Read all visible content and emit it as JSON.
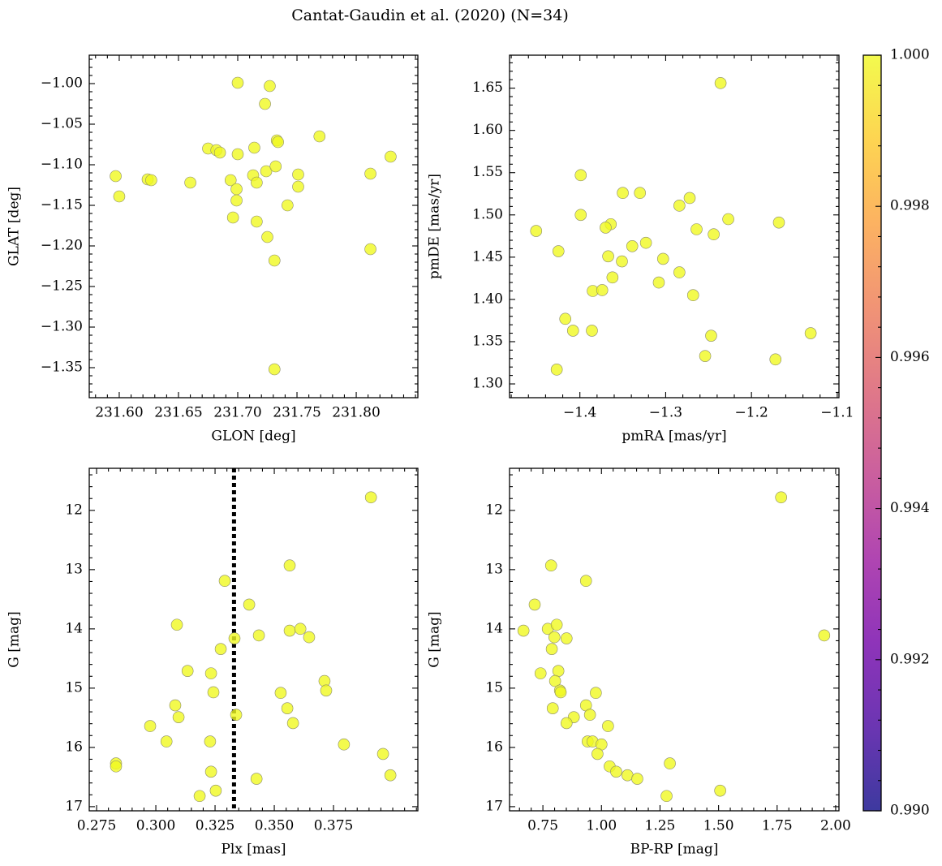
{
  "title": "Cantat-Gaudin et al. (2020) (N=34)",
  "chart_data": [
    {
      "type": "scatter",
      "x_label": "GLON [deg]",
      "y_label": "GLAT [deg]",
      "color": "#f0f921",
      "xlim": [
        231.5747,
        231.852
      ],
      "ylim": [
        -1.387,
        -0.965
      ],
      "xticks": [
        {
          "value": 231.6,
          "label": "231.60"
        },
        {
          "value": 231.65,
          "label": "231.65"
        },
        {
          "value": 231.7,
          "label": "231.70"
        },
        {
          "value": 231.75,
          "label": "231.75"
        },
        {
          "value": 231.8,
          "label": "231.80"
        }
      ],
      "yticks": [
        {
          "value": -1.35,
          "label": "−1.35"
        },
        {
          "value": -1.3,
          "label": "−1.30"
        },
        {
          "value": -1.25,
          "label": "−1.25"
        },
        {
          "value": -1.2,
          "label": "−1.20"
        },
        {
          "value": -1.15,
          "label": "−1.15"
        },
        {
          "value": -1.1,
          "label": "−1.10"
        },
        {
          "value": -1.05,
          "label": "−1.05"
        },
        {
          "value": -1.0,
          "label": "−1.00"
        }
      ],
      "x": [
        231.7,
        231.727,
        231.723,
        231.769,
        231.733,
        231.734,
        231.675,
        231.682,
        231.685,
        231.7,
        231.714,
        231.829,
        231.597,
        231.624,
        231.627,
        231.66,
        231.6,
        231.694,
        231.713,
        231.724,
        231.732,
        231.751,
        231.751,
        231.716,
        231.699,
        231.699,
        231.812,
        231.696,
        231.716,
        231.742,
        231.725,
        231.812,
        231.731,
        231.731
      ],
      "values": [
        -0.999,
        -1.003,
        -1.025,
        -1.065,
        -1.07,
        -1.072,
        -1.08,
        -1.082,
        -1.085,
        -1.087,
        -1.079,
        -1.09,
        -1.114,
        -1.118,
        -1.119,
        -1.122,
        -1.139,
        -1.119,
        -1.113,
        -1.108,
        -1.102,
        -1.112,
        -1.127,
        -1.122,
        -1.13,
        -1.144,
        -1.111,
        -1.165,
        -1.17,
        -1.15,
        -1.189,
        -1.204,
        -1.218,
        -1.352
      ]
    },
    {
      "type": "scatter",
      "x_label": "pmRA [mas/yr]",
      "y_label": "pmDE [mas/yr]",
      "color": "#f0f921",
      "xlim": [
        -1.482,
        -1.098
      ],
      "ylim": [
        1.2837,
        1.689
      ],
      "xticks": [
        {
          "value": -1.4,
          "label": "−1.4"
        },
        {
          "value": -1.3,
          "label": "−1.3"
        },
        {
          "value": -1.2,
          "label": "−1.2"
        },
        {
          "value": -1.1,
          "label": "−1.1"
        }
      ],
      "yticks": [
        {
          "value": 1.3,
          "label": "1.30"
        },
        1.35,
        {
          "value": 1.4,
          "label": "1.40"
        },
        1.45,
        {
          "value": 1.5,
          "label": "1.50"
        },
        1.55,
        {
          "value": 1.6,
          "label": "1.60"
        },
        1.65
      ],
      "x": [
        -1.236,
        -1.399,
        -1.35,
        -1.33,
        -1.272,
        -1.284,
        -1.399,
        -1.168,
        -1.227,
        -1.364,
        -1.37,
        -1.451,
        -1.264,
        -1.244,
        -1.323,
        -1.339,
        -1.425,
        -1.367,
        -1.351,
        -1.303,
        -1.284,
        -1.362,
        -1.308,
        -1.385,
        -1.374,
        -1.268,
        -1.417,
        -1.408,
        -1.386,
        -1.247,
        -1.131,
        -1.254,
        -1.172,
        -1.427
      ],
      "values": [
        1.656,
        1.547,
        1.526,
        1.526,
        1.52,
        1.511,
        1.5,
        1.491,
        1.495,
        1.489,
        1.485,
        1.481,
        1.483,
        1.477,
        1.467,
        1.463,
        1.457,
        1.451,
        1.445,
        1.448,
        1.432,
        1.426,
        1.42,
        1.41,
        1.411,
        1.405,
        1.377,
        1.363,
        1.363,
        1.357,
        1.36,
        1.333,
        1.329,
        1.317
      ]
    },
    {
      "type": "scatter",
      "x_label": "Plx [mas]",
      "y_label": "G [mag]",
      "color": "#f0f921",
      "xlim": [
        0.2719,
        0.4106
      ],
      "ylim": [
        17.07,
        11.29
      ],
      "xticks": [
        0.275,
        {
          "value": 0.3,
          "label": "0.300"
        },
        0.325,
        {
          "value": 0.35,
          "label": "0.350"
        },
        0.375
      ],
      "yticks": [
        12,
        13,
        14,
        15,
        16,
        17
      ],
      "vline": {
        "x": 0.333,
        "color": "#000000"
      },
      "x": [
        0.3908,
        0.3565,
        0.3291,
        0.3394,
        0.3089,
        0.3435,
        0.3565,
        0.361,
        0.3647,
        0.3332,
        0.3274,
        0.3134,
        0.3233,
        0.3712,
        0.3243,
        0.3719,
        0.3527,
        0.3082,
        0.3555,
        0.3096,
        0.3339,
        0.3579,
        0.2976,
        0.3045,
        0.3229,
        0.3794,
        0.3959,
        0.2832,
        0.2832,
        0.3233,
        0.399,
        0.3425,
        0.3253,
        0.3185
      ],
      "values": [
        11.78,
        12.93,
        13.19,
        13.59,
        13.93,
        14.11,
        14.03,
        14.0,
        14.14,
        14.16,
        14.34,
        14.71,
        14.75,
        14.88,
        15.07,
        15.04,
        15.08,
        15.29,
        15.34,
        15.49,
        15.45,
        15.59,
        15.64,
        15.9,
        15.9,
        15.95,
        16.11,
        16.27,
        16.32,
        16.41,
        16.47,
        16.53,
        16.73,
        16.82
      ]
    },
    {
      "type": "scatter",
      "x_label": "BP-RP [mag]",
      "y_label": "G [mag]",
      "color": "#f0f921",
      "xlim": [
        0.6076,
        2.014
      ],
      "ylim": [
        17.07,
        11.29
      ],
      "xticks": [
        0.75,
        {
          "value": 1.0,
          "label": "1.00"
        },
        1.25,
        {
          "value": 1.5,
          "label": "1.50"
        },
        1.75,
        {
          "value": 2.0,
          "label": "2.00"
        }
      ],
      "yticks": [
        12,
        13,
        14,
        15,
        16,
        17
      ],
      "x": [
        1.767,
        0.785,
        0.934,
        0.715,
        0.667,
        0.771,
        0.809,
        0.799,
        0.851,
        1.951,
        0.788,
        0.74,
        0.816,
        0.802,
        0.823,
        0.826,
        0.976,
        0.792,
        0.934,
        0.882,
        0.951,
        0.851,
        1.028,
        0.941,
        0.962,
        1.0,
        0.983,
        1.035,
        1.292,
        1.063,
        1.111,
        1.153,
        1.507,
        1.278
      ],
      "values": [
        11.78,
        12.93,
        13.19,
        13.59,
        14.03,
        14.0,
        13.93,
        14.14,
        14.16,
        14.11,
        14.34,
        14.75,
        14.71,
        14.88,
        15.04,
        15.07,
        15.08,
        15.34,
        15.29,
        15.49,
        15.45,
        15.59,
        15.64,
        15.9,
        15.9,
        15.95,
        16.11,
        16.32,
        16.27,
        16.41,
        16.47,
        16.53,
        16.73,
        16.82
      ]
    },
    {
      "type": "colorbar",
      "clim": [
        0.99,
        1.0
      ],
      "ticks": [
        {
          "value": 0.99,
          "label": "0.990"
        },
        0.992,
        0.994,
        0.996,
        0.998,
        {
          "value": 1.0,
          "label": "1.000"
        }
      ],
      "colors": [
        "#0d0887",
        "#46039f",
        "#7201a8",
        "#9c179e",
        "#bd3786",
        "#d8576b",
        "#ed7953",
        "#fb9f3a",
        "#fdca26",
        "#f0f921"
      ]
    }
  ]
}
